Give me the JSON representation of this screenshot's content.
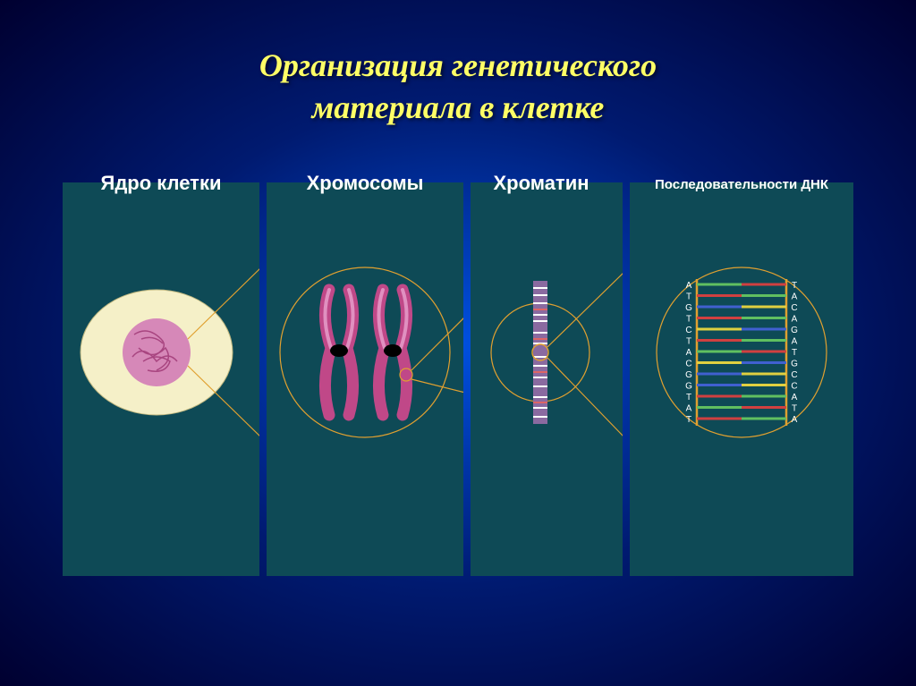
{
  "title_line1": "Организация генетического",
  "title_line2": "материала в клетке",
  "panels": {
    "nucleus": {
      "label": "Ядро клетки"
    },
    "chromosomes": {
      "label": "Хромосомы"
    },
    "chromatin": {
      "label": "Хроматин"
    },
    "dna": {
      "label": "Последовательности ДНК"
    }
  },
  "colors": {
    "panel_bg": "#0e4a56",
    "title": "#ffff66",
    "label": "#ffffff",
    "cell_fill": "#f5f0c8",
    "nucleus_fill": "#d688b8",
    "nucleus_lines": "#a84580",
    "zoom_line": "#e0a030",
    "chromosome": "#c04888",
    "chromosome_light": "#e090c0",
    "centromere": "#000000",
    "chromatin_bar": "#b0b0d0",
    "chromatin_bands": "#ffffff",
    "dna_backbone": "#e0a030",
    "base_a": "#60c060",
    "base_t": "#d04040",
    "base_g": "#4060d0",
    "base_c": "#e0d040",
    "base_letter": "#ffffff"
  },
  "dna_sequence": [
    [
      "A",
      "T"
    ],
    [
      "T",
      "A"
    ],
    [
      "G",
      "C"
    ],
    [
      "T",
      "A"
    ],
    [
      "C",
      "G"
    ],
    [
      "T",
      "A"
    ],
    [
      "A",
      "T"
    ],
    [
      "C",
      "G"
    ],
    [
      "G",
      "C"
    ],
    [
      "G",
      "C"
    ],
    [
      "T",
      "A"
    ],
    [
      "A",
      "T"
    ],
    [
      "T",
      "A"
    ]
  ]
}
